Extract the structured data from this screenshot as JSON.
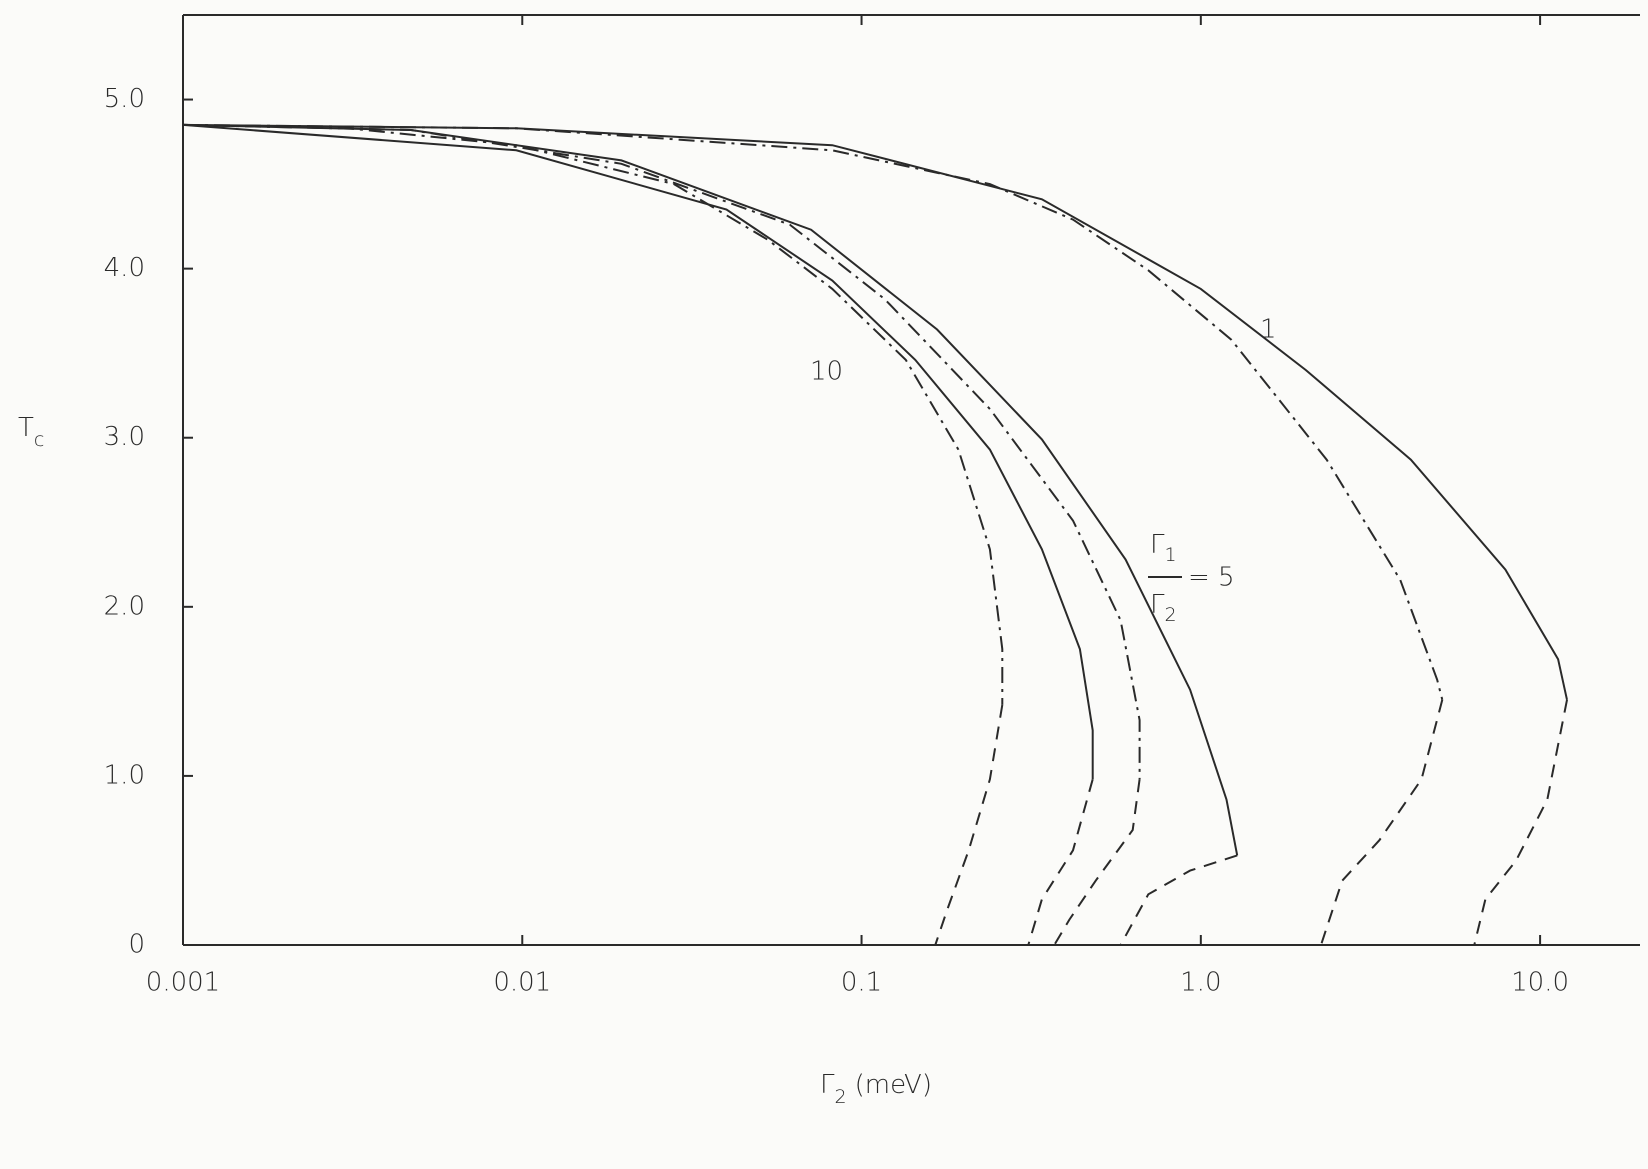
{
  "chart_data": {
    "type": "line",
    "xlabel": {
      "symbol": "Γ",
      "subscript": "2",
      "unit": "(meV)"
    },
    "ylabel": {
      "symbol": "T",
      "subscript": "c"
    },
    "xscale": "log",
    "xlim": [
      0.001,
      19.7
    ],
    "ylim": [
      0,
      5.5
    ],
    "xticks": [
      0.001,
      0.01,
      0.1,
      {
        "value": 1,
        "label": "1.0"
      },
      {
        "value": 10,
        "label": "10.0"
      }
    ],
    "yticks": [
      0,
      {
        "value": 1,
        "label": "1.0"
      },
      {
        "value": 2,
        "label": "2.0"
      },
      {
        "value": 3,
        "label": "3.0"
      },
      {
        "value": 4,
        "label": "4.0"
      },
      {
        "value": 5,
        "label": "5.0"
      }
    ],
    "series": [
      {
        "style": "dashdot",
        "color": "#2a2a2a",
        "x": [
          0.001,
          0.00307,
          0.0096,
          0.028,
          0.053,
          0.082,
          0.135,
          0.193,
          0.239,
          0.26,
          0.26
        ],
        "values": [
          4.85,
          4.83,
          4.73,
          4.5,
          4.17,
          3.88,
          3.46,
          2.93,
          2.34,
          1.75,
          1.42
        ]
      },
      {
        "style": "dashed",
        "color": "#2a2a2a",
        "x": [
          0.26,
          0.239,
          0.207,
          0.179,
          0.165
        ],
        "values": [
          1.42,
          0.98,
          0.56,
          0.21,
          0
        ]
      },
      {
        "style": "solid",
        "color": "#2a2a2a",
        "x": [
          0.001,
          0.0096,
          0.04,
          0.082,
          0.144,
          0.239,
          0.34,
          0.44,
          0.48,
          0.48
        ],
        "values": [
          4.85,
          4.7,
          4.35,
          3.93,
          3.46,
          2.93,
          2.34,
          1.75,
          1.27,
          0.98
        ]
      },
      {
        "style": "dashed",
        "color": "#2a2a2a",
        "x": [
          0.48,
          0.42,
          0.34,
          0.31
        ],
        "values": [
          0.98,
          0.56,
          0.27,
          0
        ]
      },
      {
        "style": "dashdot",
        "color": "#2a2a2a",
        "x": [
          0.001,
          0.0047,
          0.0196,
          0.0615,
          0.117,
          0.239,
          0.42,
          0.58,
          0.66,
          0.66
        ],
        "values": [
          4.85,
          4.82,
          4.62,
          4.26,
          3.82,
          3.17,
          2.51,
          1.92,
          1.33,
          0.98
        ]
      },
      {
        "style": "dashed",
        "color": "#2a2a2a",
        "x": [
          0.66,
          0.63,
          0.49,
          0.41,
          0.37
        ],
        "values": [
          0.98,
          0.68,
          0.38,
          0.15,
          0
        ]
      },
      {
        "style": "solid",
        "color": "#2a2a2a",
        "x": [
          0.001,
          0.0047,
          0.0196,
          0.071,
          0.167,
          0.34,
          0.6,
          0.93,
          1.19,
          1.28
        ],
        "values": [
          4.85,
          4.82,
          4.64,
          4.23,
          3.64,
          2.99,
          2.28,
          1.51,
          0.86,
          0.53
        ]
      },
      {
        "style": "dashed",
        "color": "#2a2a2a",
        "x": [
          1.28,
          0.93,
          0.7,
          0.58
        ],
        "values": [
          0.53,
          0.44,
          0.3,
          0
        ]
      },
      {
        "style": "dashdot",
        "color": "#2a2a2a",
        "x": [
          0.001,
          0.0096,
          0.082,
          0.239,
          0.42,
          0.7,
          1.23,
          2.35,
          3.87,
          4.97,
          5.15
        ],
        "values": [
          4.85,
          4.83,
          4.7,
          4.5,
          4.29,
          3.99,
          3.58,
          2.87,
          2.16,
          1.57,
          1.45
        ]
      },
      {
        "style": "dashed",
        "color": "#2a2a2a",
        "x": [
          5.15,
          4.47,
          3.36,
          2.61,
          2.26
        ],
        "values": [
          1.45,
          0.98,
          0.62,
          0.38,
          0
        ]
      },
      {
        "style": "solid",
        "color": "#2a2a2a",
        "x": [
          0.001,
          0.0096,
          0.082,
          0.34,
          1.0,
          2.04,
          4.16,
          7.9,
          11.3,
          12.0
        ],
        "values": [
          4.85,
          4.83,
          4.73,
          4.41,
          3.88,
          3.4,
          2.87,
          2.22,
          1.69,
          1.45
        ]
      },
      {
        "style": "dashed",
        "color": "#2a2a2a",
        "x": [
          12.0,
          10.5,
          8.5,
          6.9,
          6.4
        ],
        "values": [
          1.45,
          0.86,
          0.5,
          0.27,
          0
        ]
      }
    ],
    "annotations": [
      "10",
      "1"
    ],
    "ratio_label": {
      "num_symbol": "Γ",
      "num_sub": "1",
      "den_symbol": "Γ",
      "den_sub": "2",
      "text": "= 5"
    }
  }
}
